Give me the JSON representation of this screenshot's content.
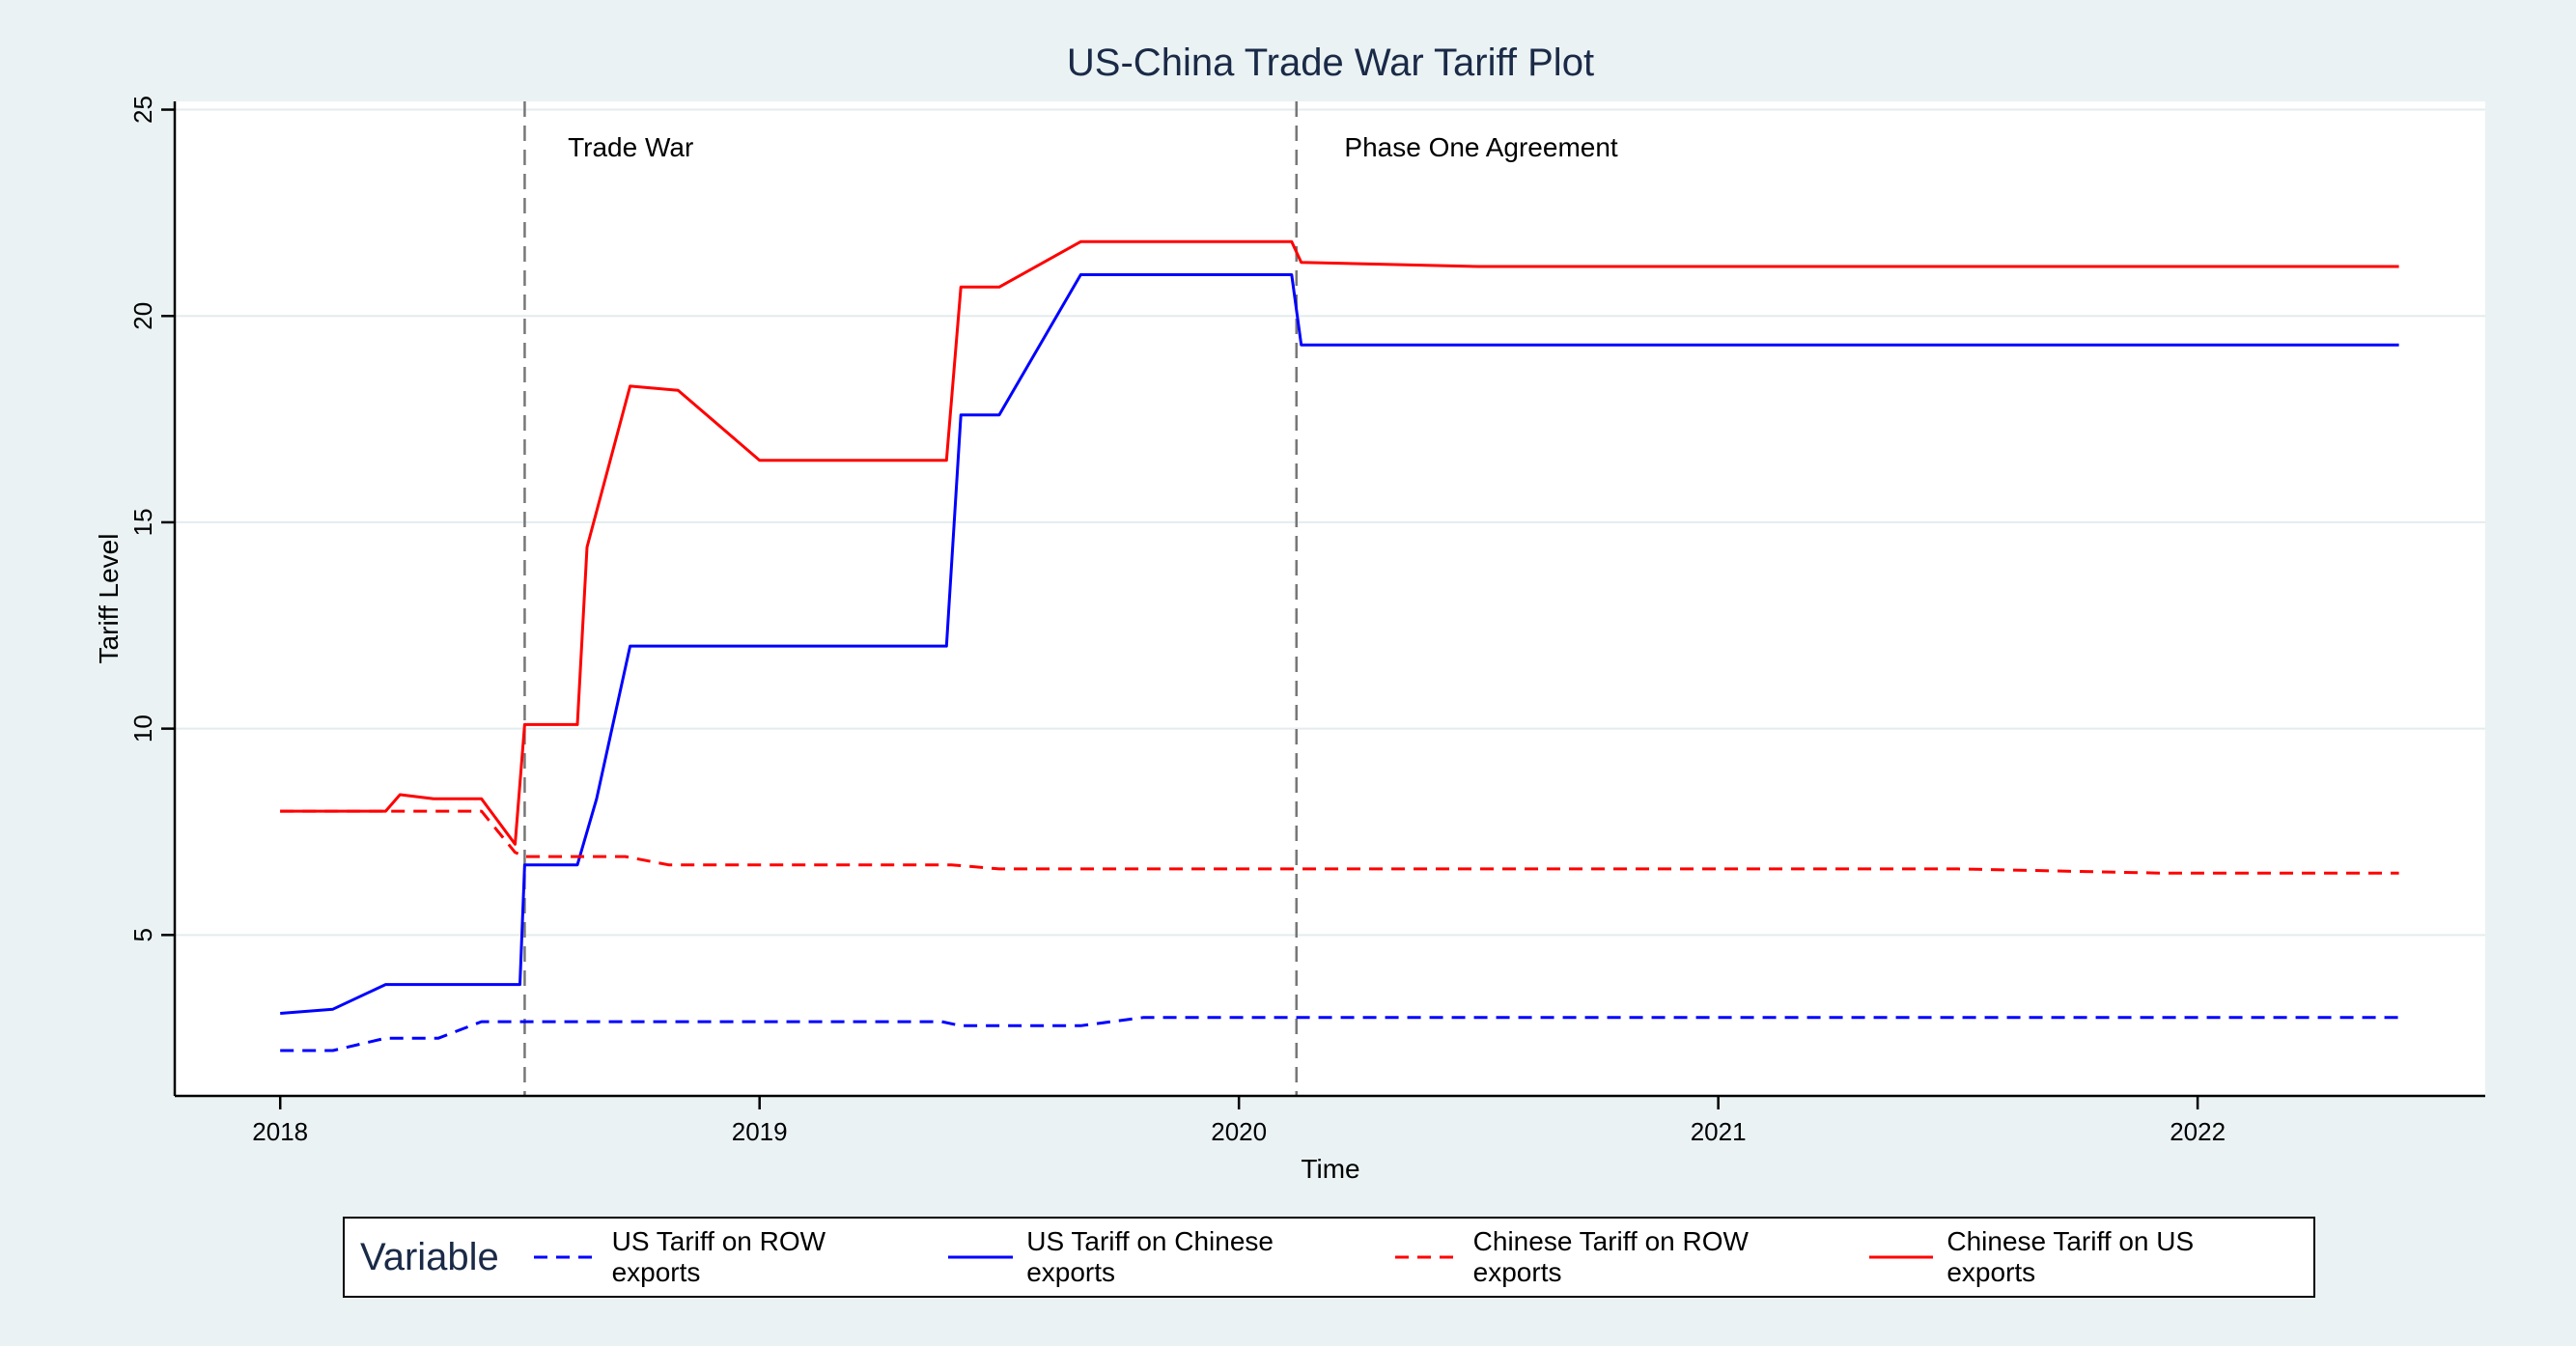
{
  "chart_data": {
    "type": "line",
    "title": "US-China Trade War Tariff Plot",
    "xlabel": "Time",
    "ylabel": "Tariff Level",
    "xlim": [
      2017.78,
      2022.6
    ],
    "ylim": [
      1.1,
      25.2
    ],
    "x_ticks": [
      2018,
      2019,
      2020,
      2021,
      2022
    ],
    "x_tick_labels": [
      "2018",
      "2019",
      "2020",
      "2021",
      "2022"
    ],
    "y_ticks": [
      5,
      10,
      15,
      20,
      25
    ],
    "y_tick_labels": [
      "5",
      "10",
      "15",
      "20",
      "25"
    ],
    "grid": true,
    "legend": {
      "title": "Variable",
      "position": "bottom"
    },
    "annotations": [
      {
        "text": "Trade War",
        "x": 2018.6,
        "y": 24.1
      },
      {
        "text": "Phase One Agreement",
        "x": 2020.22,
        "y": 24.1
      }
    ],
    "vlines": [
      2018.51,
      2020.12
    ],
    "series": [
      {
        "name": "US Tariff on ROW exports",
        "color": "#0000ff",
        "dash": "dashed",
        "points": [
          [
            2018.0,
            2.2
          ],
          [
            2018.11,
            2.2
          ],
          [
            2018.22,
            2.5
          ],
          [
            2018.33,
            2.5
          ],
          [
            2018.42,
            2.9
          ],
          [
            2019.0,
            2.9
          ],
          [
            2019.38,
            2.9
          ],
          [
            2019.42,
            2.8
          ],
          [
            2019.67,
            2.8
          ],
          [
            2019.8,
            3.0
          ],
          [
            2020.12,
            3.0
          ],
          [
            2022.42,
            3.0
          ]
        ]
      },
      {
        "name": "US Tariff on Chinese exports",
        "color": "#0000ff",
        "dash": "solid",
        "points": [
          [
            2018.0,
            3.1
          ],
          [
            2018.11,
            3.2
          ],
          [
            2018.22,
            3.8
          ],
          [
            2018.5,
            3.8
          ],
          [
            2018.51,
            6.7
          ],
          [
            2018.62,
            6.7
          ],
          [
            2018.66,
            8.3
          ],
          [
            2018.73,
            12.0
          ],
          [
            2019.39,
            12.0
          ],
          [
            2019.42,
            17.6
          ],
          [
            2019.5,
            17.6
          ],
          [
            2019.67,
            21.0
          ],
          [
            2020.11,
            21.0
          ],
          [
            2020.13,
            19.3
          ],
          [
            2022.42,
            19.3
          ]
        ]
      },
      {
        "name": "Chinese Tariff on ROW exports",
        "color": "#ff0000",
        "dash": "dashed",
        "points": [
          [
            2018.0,
            8.0
          ],
          [
            2018.42,
            8.0
          ],
          [
            2018.49,
            7.0
          ],
          [
            2018.51,
            6.9
          ],
          [
            2018.72,
            6.9
          ],
          [
            2018.81,
            6.7
          ],
          [
            2019.4,
            6.7
          ],
          [
            2019.5,
            6.6
          ],
          [
            2020.0,
            6.6
          ],
          [
            2021.5,
            6.6
          ],
          [
            2021.92,
            6.5
          ],
          [
            2022.42,
            6.5
          ]
        ]
      },
      {
        "name": "Chinese Tariff on US exports",
        "color": "#ff0000",
        "dash": "solid",
        "points": [
          [
            2018.0,
            8.0
          ],
          [
            2018.22,
            8.0
          ],
          [
            2018.25,
            8.4
          ],
          [
            2018.32,
            8.3
          ],
          [
            2018.42,
            8.3
          ],
          [
            2018.49,
            7.2
          ],
          [
            2018.51,
            10.1
          ],
          [
            2018.62,
            10.1
          ],
          [
            2018.64,
            14.4
          ],
          [
            2018.73,
            18.3
          ],
          [
            2018.83,
            18.2
          ],
          [
            2019.0,
            16.5
          ],
          [
            2019.39,
            16.5
          ],
          [
            2019.42,
            20.7
          ],
          [
            2019.5,
            20.7
          ],
          [
            2019.67,
            21.8
          ],
          [
            2020.11,
            21.8
          ],
          [
            2020.13,
            21.3
          ],
          [
            2020.5,
            21.2
          ],
          [
            2022.42,
            21.2
          ]
        ]
      }
    ]
  }
}
